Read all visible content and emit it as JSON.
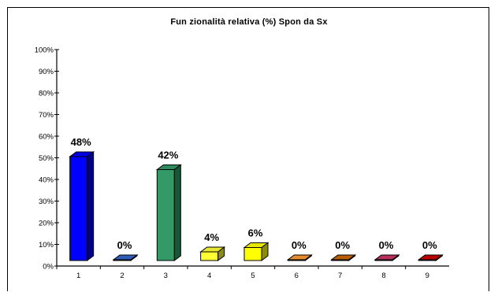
{
  "chart_data": {
    "type": "bar",
    "title": "Fun zionalità relativa (%) Spon da Sx",
    "xlabel": "",
    "ylabel": "",
    "categories": [
      "1",
      "2",
      "3",
      "4",
      "5",
      "6",
      "7",
      "8",
      "9"
    ],
    "values": [
      48,
      0,
      42,
      4,
      6,
      0,
      0,
      0,
      0
    ],
    "data_labels": [
      "48%",
      "0%",
      "42%",
      "4%",
      "6%",
      "0%",
      "0%",
      "0%",
      "0%"
    ],
    "ylim": [
      0,
      100
    ],
    "yticks": [
      "0%",
      "10%",
      "20%",
      "30%",
      "40%",
      "50%",
      "60%",
      "70%",
      "80%",
      "90%",
      "100%"
    ],
    "bar_colors": [
      "#0000ff",
      "#3366cc",
      "#339966",
      "#ffff33",
      "#ffff00",
      "#ff9933",
      "#cc6600",
      "#cc3366",
      "#cc0000"
    ],
    "grid": false,
    "legend": "none",
    "style": "3d-bars"
  }
}
